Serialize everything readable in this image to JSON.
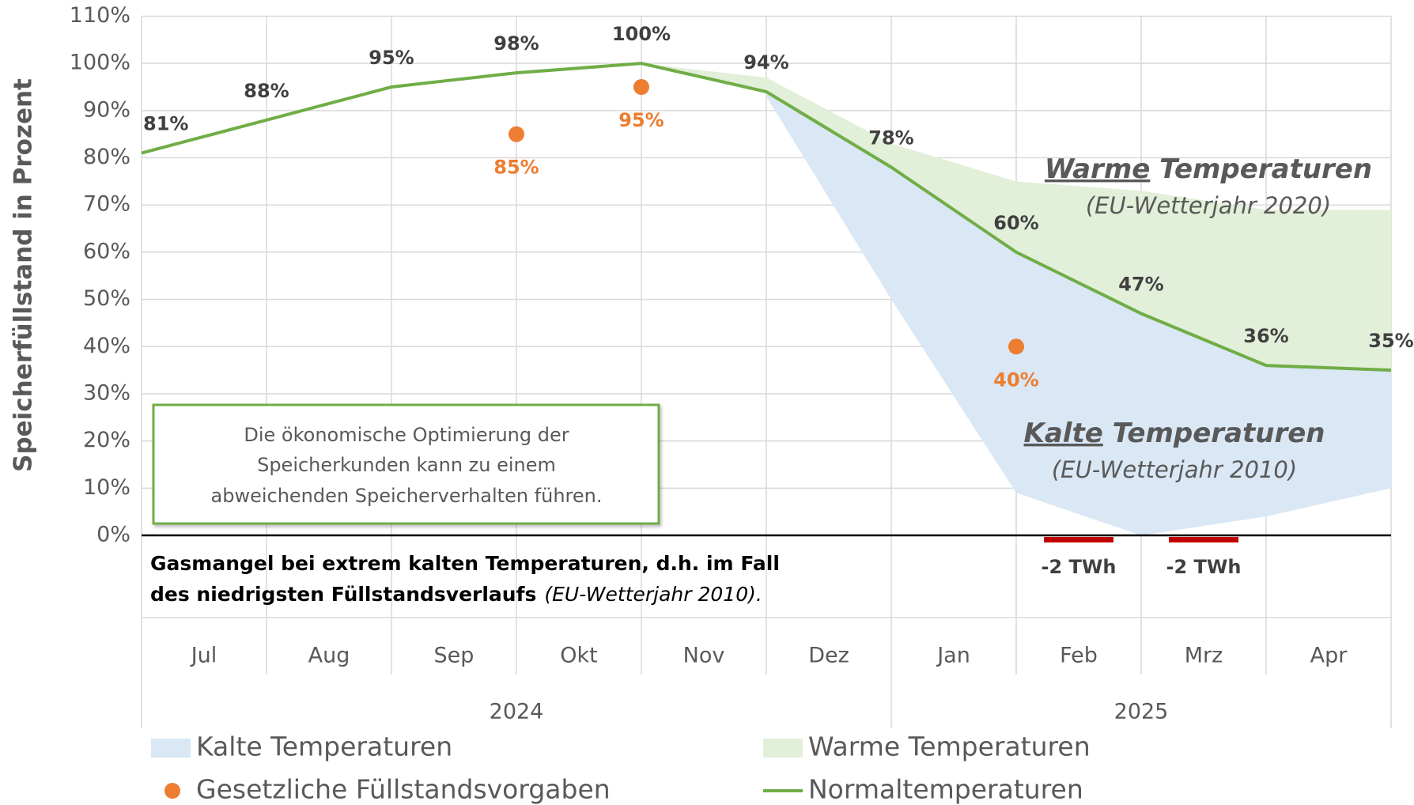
{
  "chart_data": {
    "type": "line",
    "y_axis_label": "Speicherfüllstand in Prozent",
    "categories": [
      "Jul",
      "Aug",
      "Sep",
      "Okt",
      "Nov",
      "Dez",
      "Jan",
      "Feb",
      "Mrz",
      "Apr"
    ],
    "years": [
      "2024",
      "2025"
    ],
    "x": [
      0,
      1,
      2,
      3,
      4,
      5,
      6,
      7,
      8,
      9,
      10
    ],
    "xlim": [
      0,
      10
    ],
    "ylim": [
      0,
      110
    ],
    "yticks": [
      {
        "value": 0,
        "label": "0%"
      },
      {
        "value": 10,
        "label": "10%"
      },
      {
        "value": 20,
        "label": "20%"
      },
      {
        "value": 30,
        "label": "30%"
      },
      {
        "value": 40,
        "label": "40%"
      },
      {
        "value": 50,
        "label": "50%"
      },
      {
        "value": 60,
        "label": "60%"
      },
      {
        "value": 70,
        "label": "70%"
      },
      {
        "value": 80,
        "label": "80%"
      },
      {
        "value": 90,
        "label": "90%"
      },
      {
        "value": 100,
        "label": "100%"
      },
      {
        "value": 110,
        "label": "110%"
      }
    ],
    "grid": true,
    "series": [
      {
        "name": "Kalte Temperaturen",
        "kind": "area_lower",
        "color": "#dae7f5",
        "values": [
          null,
          null,
          null,
          null,
          null,
          93,
          50,
          9,
          0,
          4,
          10
        ]
      },
      {
        "name": "Warme Temperaturen",
        "kind": "area_upper",
        "color": "#e2efd9",
        "values": [
          null,
          null,
          null,
          null,
          100,
          97,
          83,
          75,
          73,
          69,
          69
        ]
      },
      {
        "name": "Gesetzliche Füllstandsvorgaben",
        "kind": "scatter",
        "color": "#ed7d31",
        "x": [
          3,
          4,
          7
        ],
        "values": [
          85,
          95,
          40
        ],
        "value_labels": [
          "85%",
          "95%",
          "40%"
        ]
      },
      {
        "name": "Normaltemperaturen",
        "kind": "line",
        "color": "#70ad47",
        "values": [
          81,
          88,
          95,
          98,
          100,
          94,
          78,
          60,
          47,
          36,
          35
        ],
        "value_labels": [
          "81%",
          "88%",
          "95%",
          "98%",
          "100%",
          "94%",
          "78%",
          "60%",
          "47%",
          "36%",
          "35%"
        ]
      }
    ],
    "shortages": {
      "color": "#c00000",
      "x": [
        7.5,
        8.5
      ],
      "values": [
        -2,
        -2
      ],
      "value_labels": [
        "-2 TWh",
        "-2 TWh"
      ]
    },
    "annotations": {
      "warm": {
        "underlined": "Warme",
        "rest": " Temperaturen",
        "note": "(EU-Wetterjahr 2020)"
      },
      "cold": {
        "underlined": "Kalte",
        "rest": " Temperaturen",
        "note": "(EU-Wetterjahr 2010)"
      },
      "box": [
        "Die ökonomische Optimierung der",
        "Speicherkunden kann zu einem",
        "abweichenden Speicherverhalten führen."
      ],
      "shortage_note": {
        "line1": "Gasmangel bei extrem kalten Temperaturen, d.h. im Fall",
        "line2": "des niedrigsten Füllstandsverlaufs",
        "line2_italic": "(EU-Wetterjahr 2010)."
      }
    },
    "legend": "bottom"
  }
}
